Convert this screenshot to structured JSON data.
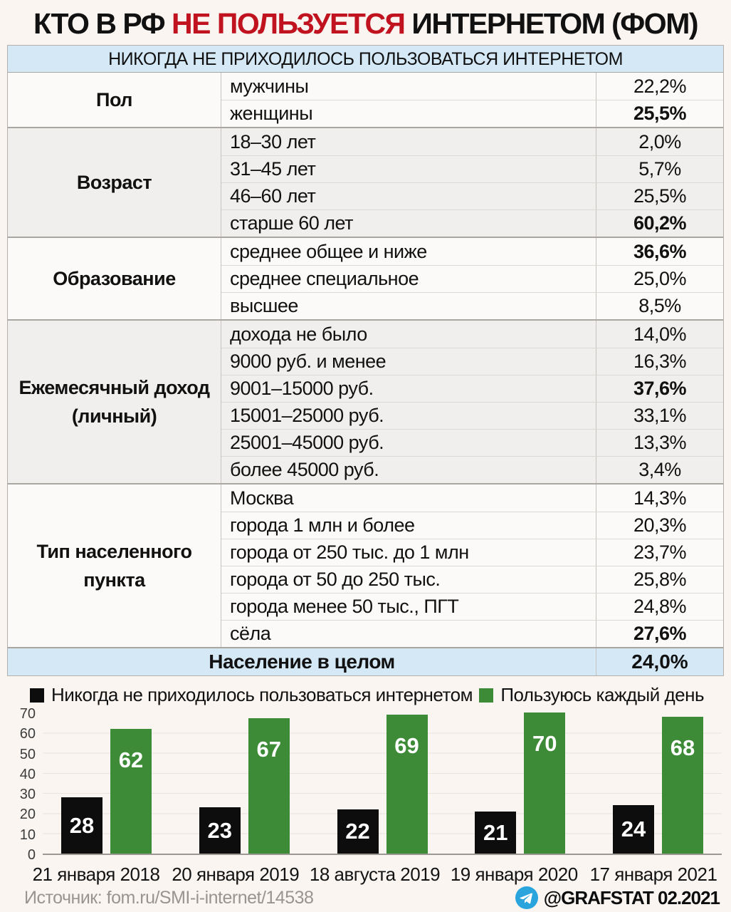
{
  "title": {
    "part1": "КТО В РФ ",
    "highlight": "НЕ ПОЛЬЗУЕТСЯ",
    "part3": " ИНТЕРНЕТОМ (ФОМ)"
  },
  "table": {
    "header": "НИКОГДА НЕ ПРИХОДИЛОСЬ ПОЛЬЗОВАТЬСЯ ИНТЕРНЕТОМ",
    "groups": [
      {
        "category": "Пол",
        "rows": [
          {
            "label": "мужчины",
            "value": "22,2%"
          },
          {
            "label": "женщины",
            "value": "25,5%"
          }
        ]
      },
      {
        "category": "Возраст",
        "rows": [
          {
            "label": "18–30 лет",
            "value": "2,0%"
          },
          {
            "label": "31–45 лет",
            "value": "5,7%"
          },
          {
            "label": "46–60 лет",
            "value": "25,5%"
          },
          {
            "label": "старше 60 лет",
            "value": "60,2%"
          }
        ]
      },
      {
        "category": "Образование",
        "rows": [
          {
            "label": "среднее общее и ниже",
            "value": "36,6%"
          },
          {
            "label": "среднее специальное",
            "value": "25,0%"
          },
          {
            "label": "высшее",
            "value": "8,5%"
          }
        ]
      },
      {
        "category": "Ежемесячный доход (личный)",
        "rows": [
          {
            "label": "дохода не было",
            "value": "14,0%"
          },
          {
            "label": "9000 руб. и менее",
            "value": "16,3%"
          },
          {
            "label": "9001–15000 руб.",
            "value": "37,6%"
          },
          {
            "label": "15001–25000 руб.",
            "value": "33,1%"
          },
          {
            "label": "25001–45000 руб.",
            "value": "13,3%"
          },
          {
            "label": "более 45000 руб.",
            "value": "3,4%"
          }
        ]
      },
      {
        "category": "Тип населенного пункта",
        "rows": [
          {
            "label": "Москва",
            "value": "14,3%"
          },
          {
            "label": "города 1 млн и более",
            "value": "20,3%"
          },
          {
            "label": "города от 250 тыс. до 1 млн",
            "value": "23,7%"
          },
          {
            "label": "города от 50 до 250 тыс.",
            "value": "25,8%"
          },
          {
            "label": "города менее 50 тыс., ПГТ",
            "value": "24,8%"
          },
          {
            "label": "сёла",
            "value": "27,6%"
          }
        ]
      }
    ],
    "footer": {
      "label": "Население в целом",
      "value": "24,0%"
    }
  },
  "chart_data": {
    "type": "bar",
    "categories": [
      "21 января 2018",
      "20 января 2019",
      "18 августа 2019",
      "19 января 2020",
      "17 января 2021"
    ],
    "series": [
      {
        "name": "Никогда не приходилось пользоваться интернетом",
        "color": "#0d0d0d",
        "values": [
          28,
          23,
          22,
          21,
          24
        ]
      },
      {
        "name": "Пользуюсь каждый день",
        "color": "#3d8b37",
        "values": [
          62,
          67,
          69,
          70,
          68
        ]
      }
    ],
    "ylim": [
      0,
      70
    ],
    "yticks": [
      0,
      10,
      20,
      30,
      40,
      50,
      60,
      70
    ],
    "grid": true,
    "legend_position": "top"
  },
  "footer": {
    "source": "Источник: fom.ru/SMI-i-internet/14538",
    "credit": "@GRAFSTAT 02.2021"
  },
  "colors": {
    "accent_red": "#c0131f",
    "header_blue": "#d5e8f6",
    "bar_green": "#3d8b37",
    "bar_black": "#0d0d0d",
    "telegram_blue": "#2aa4dc",
    "background": "#faf5f1"
  }
}
